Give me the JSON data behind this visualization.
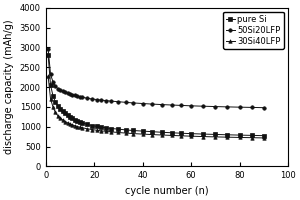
{
  "title": "",
  "xlabel": "cycle number (n)",
  "ylabel": "discharge capacity (mAh/g)",
  "xlim": [
    0,
    100
  ],
  "ylim": [
    0,
    4000
  ],
  "xticks": [
    0,
    20,
    40,
    60,
    80,
    100
  ],
  "yticks": [
    0,
    500,
    1000,
    1500,
    2000,
    2500,
    3000,
    3500,
    4000
  ],
  "background_color": "#ffffff",
  "series": [
    {
      "label": "pure Si",
      "marker": "s",
      "color": "#111111",
      "markersize": 2.5,
      "linewidth": 0.7,
      "x": [
        1,
        2,
        3,
        4,
        5,
        6,
        7,
        8,
        9,
        10,
        11,
        12,
        13,
        14,
        15,
        17,
        19,
        21,
        23,
        25,
        27,
        30,
        33,
        36,
        40,
        44,
        48,
        52,
        56,
        60,
        65,
        70,
        75,
        80,
        85,
        90
      ],
      "y": [
        2800,
        2050,
        1780,
        1620,
        1530,
        1450,
        1390,
        1340,
        1290,
        1250,
        1210,
        1180,
        1150,
        1120,
        1100,
        1060,
        1030,
        1010,
        990,
        970,
        955,
        940,
        920,
        905,
        890,
        875,
        860,
        848,
        836,
        826,
        815,
        806,
        797,
        789,
        782,
        775
      ]
    },
    {
      "label": "50Si20LFP",
      "marker": "o",
      "color": "#111111",
      "markersize": 2.5,
      "linewidth": 0.7,
      "x": [
        1,
        2,
        3,
        4,
        5,
        6,
        7,
        8,
        9,
        10,
        11,
        12,
        13,
        14,
        15,
        17,
        19,
        21,
        23,
        25,
        27,
        30,
        33,
        36,
        40,
        44,
        48,
        52,
        56,
        60,
        65,
        70,
        75,
        80,
        85,
        90
      ],
      "y": [
        2960,
        2320,
        2130,
        2020,
        1960,
        1920,
        1890,
        1870,
        1850,
        1830,
        1810,
        1790,
        1775,
        1760,
        1745,
        1720,
        1700,
        1685,
        1670,
        1658,
        1645,
        1630,
        1615,
        1600,
        1585,
        1570,
        1558,
        1547,
        1537,
        1527,
        1517,
        1508,
        1500,
        1493,
        1487,
        1480
      ]
    },
    {
      "label": "30Si40LFP",
      "marker": "^",
      "color": "#111111",
      "markersize": 2.5,
      "linewidth": 0.7,
      "x": [
        1,
        2,
        3,
        4,
        5,
        6,
        7,
        8,
        9,
        10,
        11,
        12,
        13,
        14,
        15,
        17,
        19,
        21,
        23,
        25,
        27,
        30,
        33,
        36,
        40,
        44,
        48,
        52,
        56,
        60,
        65,
        70,
        75,
        80,
        85,
        90
      ],
      "y": [
        2270,
        1700,
        1500,
        1360,
        1280,
        1220,
        1170,
        1130,
        1100,
        1070,
        1045,
        1025,
        1005,
        990,
        975,
        950,
        930,
        912,
        896,
        882,
        870,
        855,
        840,
        828,
        814,
        802,
        791,
        781,
        771,
        762,
        752,
        744,
        737,
        730,
        724,
        718
      ]
    }
  ],
  "legend_loc": "upper right",
  "legend_fontsize": 6,
  "axis_fontsize": 7,
  "tick_fontsize": 6
}
